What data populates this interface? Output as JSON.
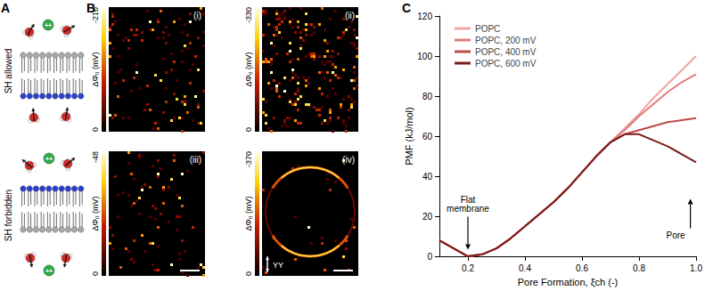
{
  "panels": {
    "A": {
      "label": "A",
      "rows": [
        {
          "text": "SH allowed"
        },
        {
          "text": "SH forbidden"
        }
      ],
      "ion_label": "++"
    },
    "B": {
      "label": "B",
      "colorbar_title": "ΔΦ₀ (mV)",
      "images": [
        {
          "label": "(i)",
          "colorbar": {
            "range": [
              0,
              -210
            ],
            "ticks": [
              0,
              -210
            ]
          }
        },
        {
          "label": "(ii)",
          "colorbar": {
            "range": [
              0,
              -330
            ],
            "ticks": [
              0,
              -330
            ]
          }
        },
        {
          "label": "(iii)",
          "colorbar": {
            "range": [
              0,
              -48
            ],
            "ticks": [
              0,
              -48
            ]
          }
        },
        {
          "label": "(iv)",
          "colorbar": {
            "range": [
              0,
              -370
            ],
            "ticks": [
              0,
              -370
            ]
          },
          "polarization": "YY"
        }
      ]
    },
    "C": {
      "label": "C"
    }
  },
  "chart_data": {
    "type": "line",
    "x_label": "Pore Formation, ξch (-)",
    "y_label": "PMF (kJ/mol)",
    "x": [
      0.1,
      0.15,
      0.2,
      0.25,
      0.3,
      0.35,
      0.4,
      0.45,
      0.5,
      0.55,
      0.6,
      0.65,
      0.7,
      0.75,
      0.8,
      0.85,
      0.9,
      0.95,
      1.0
    ],
    "series": [
      {
        "name": "POPC",
        "color": "#f2a3a3",
        "values": [
          8,
          4,
          0,
          1,
          4,
          9,
          15,
          21,
          27,
          34,
          42,
          50,
          57,
          64,
          71,
          79,
          86,
          93,
          100
        ]
      },
      {
        "name": "POPC, 200 mV",
        "color": "#e07a7a",
        "values": [
          8,
          4,
          0,
          1,
          4,
          9,
          15,
          21,
          27,
          34,
          42,
          50,
          57,
          63,
          70,
          76,
          82,
          87,
          91
        ]
      },
      {
        "name": "POPC, 400 mV",
        "color": "#c04848",
        "values": [
          8,
          4,
          0,
          1,
          4,
          9,
          15,
          21,
          27,
          34,
          42,
          50,
          57,
          61,
          63,
          65,
          67,
          68,
          69
        ]
      },
      {
        "name": "POPC, 600 mV",
        "color": "#7a1c1c",
        "values": [
          8,
          4,
          0,
          1,
          4,
          9,
          15,
          21,
          27,
          34,
          42,
          50,
          57,
          61,
          61,
          58,
          55,
          51,
          47
        ]
      }
    ],
    "xlim": [
      0.1,
      1.0
    ],
    "xticks": [
      0.2,
      0.4,
      0.6,
      0.8,
      {
        "value": 1,
        "label": "1.0"
      }
    ],
    "ylim": [
      0,
      120
    ],
    "yticks": [
      0,
      20,
      40,
      60,
      80,
      100,
      120
    ],
    "grid": false,
    "legend": "upper left",
    "annotations": [
      {
        "text": "Flat\nmembrane",
        "x": 0.2,
        "y": 2
      },
      {
        "text": "Pore",
        "x": 0.98,
        "y": 30
      }
    ]
  }
}
